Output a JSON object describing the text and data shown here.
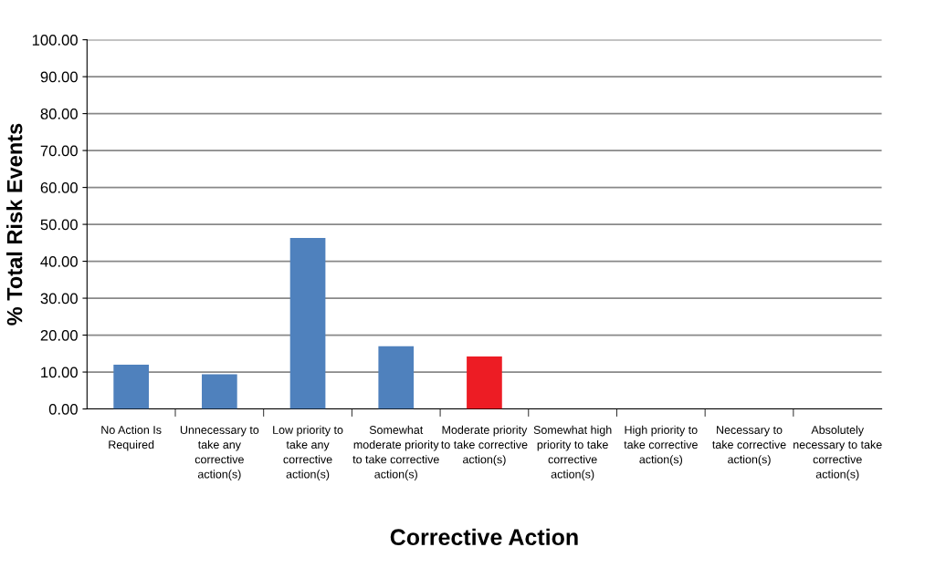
{
  "chart_data": {
    "type": "bar",
    "xlabel": "Corrective Action",
    "ylabel": "% Total Risk Events",
    "categories": [
      "No Action Is Required",
      "Unnecessary to take any corrective action(s)",
      "Low priority to take any corrective action(s)",
      "Somewhat moderate priority to take corrective action(s)",
      "Moderate priority to take corrective action(s)",
      "Somewhat high priority to take corrective action(s)",
      "High priority to take corrective action(s)",
      "Necessary to take corrective action(s)",
      "Absolutely necessary to take corrective action(s)"
    ],
    "values": [
      12.0,
      9.4,
      46.3,
      17.0,
      14.2,
      0,
      0,
      0,
      0
    ],
    "colors": [
      "#4f81bd",
      "#4f81bd",
      "#4f81bd",
      "#4f81bd",
      "#ed1c24",
      "#4f81bd",
      "#4f81bd",
      "#4f81bd",
      "#4f81bd"
    ],
    "ylim": [
      0,
      100
    ],
    "yticks": [
      {
        "value": 0,
        "label": "0.00"
      },
      {
        "value": 10,
        "label": "10.00"
      },
      {
        "value": 20,
        "label": "20.00"
      },
      {
        "value": 30,
        "label": "30.00"
      },
      {
        "value": 40,
        "label": "40.00"
      },
      {
        "value": 50,
        "label": "50.00"
      },
      {
        "value": 60,
        "label": "60.00"
      },
      {
        "value": 70,
        "label": "70.00"
      },
      {
        "value": 80,
        "label": "80.00"
      },
      {
        "value": 90,
        "label": "90.00"
      },
      {
        "value": 100,
        "label": "100.00"
      }
    ],
    "grid": "y",
    "legend": false
  }
}
